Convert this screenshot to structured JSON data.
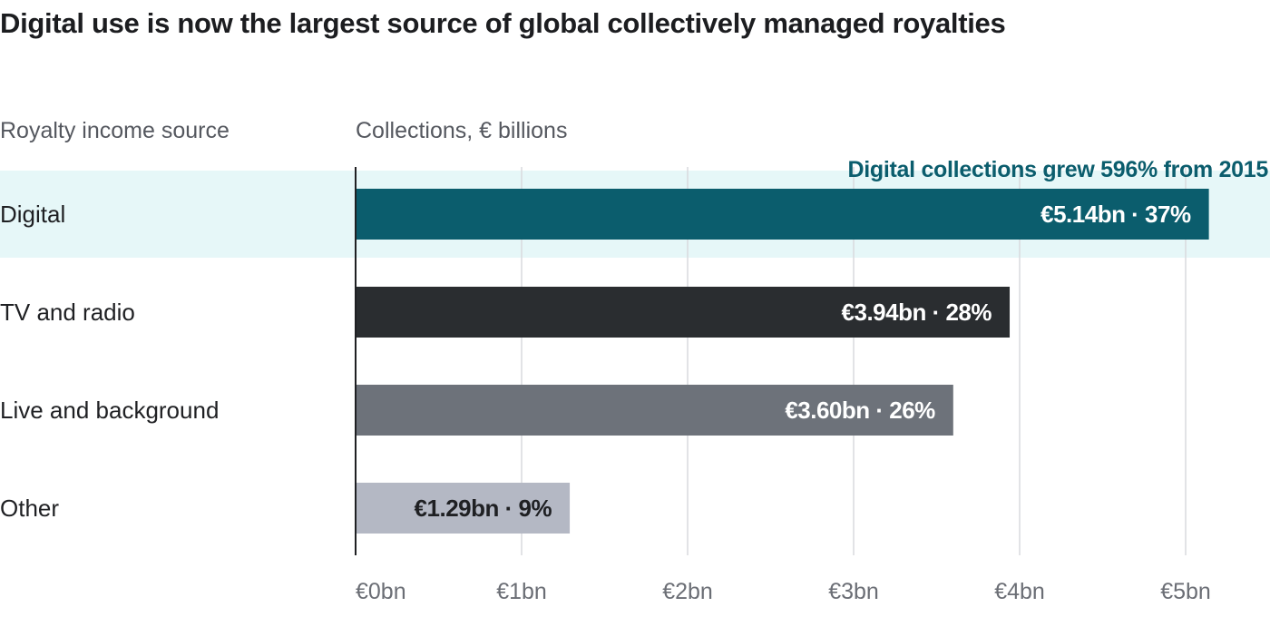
{
  "title": "Digital use is now the largest source of global collectively managed royalties",
  "category_header": "Royalty income source",
  "value_header": "Collections, € billions",
  "annotation": "Digital collections grew 596% from 2015",
  "colors": {
    "highlight_band": "#e6f7f8",
    "axis": "#1f2023",
    "grid": "#d8dade"
  },
  "chart_data": {
    "type": "bar",
    "orientation": "horizontal",
    "title": "Digital use is now the largest source of global collectively managed royalties",
    "xlabel": "Collections, € billions",
    "ylabel": "Royalty income source",
    "categories": [
      "Digital",
      "TV and radio",
      "Live and background",
      "Other"
    ],
    "values": [
      5.14,
      3.94,
      3.6,
      1.29
    ],
    "value_labels": [
      "€5.14bn · 37%",
      "€3.94bn · 28%",
      "€3.60bn · 26%",
      "€1.29bn · 9%"
    ],
    "bar_colors": [
      "#0b5d6d",
      "#2a2d30",
      "#6d727a",
      "#b4b8c4"
    ],
    "label_colors": [
      "#ffffff",
      "#ffffff",
      "#ffffff",
      "#1f2023"
    ],
    "highlighted_category": "Digital",
    "xlim": [
      0,
      5
    ],
    "xticks": [
      0,
      1,
      2,
      3,
      4,
      5
    ],
    "xtick_labels": [
      "€0bn",
      "€1bn",
      "€2bn",
      "€3bn",
      "€4bn",
      "€5bn"
    ],
    "grid": true
  }
}
